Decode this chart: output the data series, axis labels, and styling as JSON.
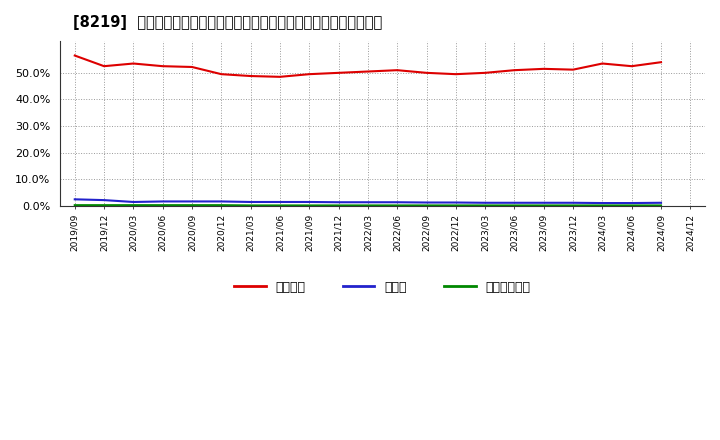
{
  "title": "[8219]  自己資本、のれん、繰延税金資産の総資産に対する比率の推移",
  "x_labels": [
    "2019/09",
    "2019/12",
    "2020/03",
    "2020/06",
    "2020/09",
    "2020/12",
    "2021/03",
    "2021/06",
    "2021/09",
    "2021/12",
    "2022/03",
    "2022/06",
    "2022/09",
    "2022/12",
    "2023/03",
    "2023/06",
    "2023/09",
    "2023/12",
    "2024/03",
    "2024/06",
    "2024/09",
    "2024/12"
  ],
  "equity_ratio": [
    56.5,
    52.5,
    53.5,
    52.5,
    52.2,
    49.5,
    48.8,
    48.5,
    49.5,
    50.0,
    50.5,
    51.0,
    50.0,
    49.5,
    50.0,
    51.0,
    51.5,
    51.2,
    53.5,
    52.5,
    54.0,
    null
  ],
  "goodwill_ratio": [
    2.5,
    2.2,
    1.5,
    1.7,
    1.7,
    1.7,
    1.5,
    1.5,
    1.5,
    1.4,
    1.4,
    1.4,
    1.3,
    1.3,
    1.2,
    1.2,
    1.2,
    1.2,
    1.1,
    1.1,
    1.2,
    null
  ],
  "deferred_tax_ratio": [
    0.3,
    0.3,
    0.3,
    0.3,
    0.3,
    0.3,
    0.2,
    0.2,
    0.2,
    0.2,
    0.2,
    0.2,
    0.2,
    0.2,
    0.2,
    0.2,
    0.2,
    0.2,
    0.2,
    0.2,
    0.2,
    null
  ],
  "equity_color": "#dd0000",
  "goodwill_color": "#2222cc",
  "deferred_tax_color": "#008800",
  "bg_color": "#ffffff",
  "plot_bg_color": "#ffffff",
  "grid_color": "#999999",
  "ylim": [
    0,
    62
  ],
  "yticks": [
    0.0,
    10.0,
    20.0,
    30.0,
    40.0,
    50.0
  ],
  "legend_labels": [
    "自己資本",
    "のれん",
    "繰延税金資産"
  ],
  "legend_colors": [
    "#dd0000",
    "#2222cc",
    "#008800"
  ]
}
